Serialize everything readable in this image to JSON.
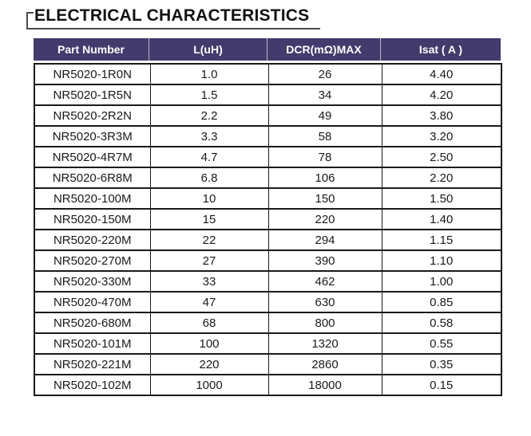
{
  "title": "ELECTRICAL CHARACTERISTICS",
  "colors": {
    "header_bg": "#423b6b",
    "header_text": "#ffffff",
    "header_divider": "#b9b6cf",
    "table_border": "#1a1a1a",
    "title_underline": "#4a4a4a",
    "text": "#1a1a1a"
  },
  "table": {
    "columns": [
      "Part Number",
      "L(uH)",
      "DCR(mΩ)MAX",
      "Isat ( A )"
    ],
    "rows": [
      [
        "NR5020-1R0N",
        "1.0",
        "26",
        "4.40"
      ],
      [
        "NR5020-1R5N",
        "1.5",
        "34",
        "4.20"
      ],
      [
        "NR5020-2R2N",
        "2.2",
        "49",
        "3.80"
      ],
      [
        "NR5020-3R3M",
        "3.3",
        "58",
        "3.20"
      ],
      [
        "NR5020-4R7M",
        "4.7",
        "78",
        "2.50"
      ],
      [
        "NR5020-6R8M",
        "6.8",
        "106",
        "2.20"
      ],
      [
        "NR5020-100M",
        "10",
        "150",
        "1.50"
      ],
      [
        "NR5020-150M",
        "15",
        "220",
        "1.40"
      ],
      [
        "NR5020-220M",
        "22",
        "294",
        "1.15"
      ],
      [
        "NR5020-270M",
        "27",
        "390",
        "1.10"
      ],
      [
        "NR5020-330M",
        "33",
        "462",
        "1.00"
      ],
      [
        "NR5020-470M",
        "47",
        "630",
        "0.85"
      ],
      [
        "NR5020-680M",
        "68",
        "800",
        "0.58"
      ],
      [
        "NR5020-101M",
        "100",
        "1320",
        "0.55"
      ],
      [
        "NR5020-221M",
        "220",
        "2860",
        "0.35"
      ],
      [
        "NR5020-102M",
        "1000",
        "18000",
        "0.15"
      ]
    ]
  }
}
